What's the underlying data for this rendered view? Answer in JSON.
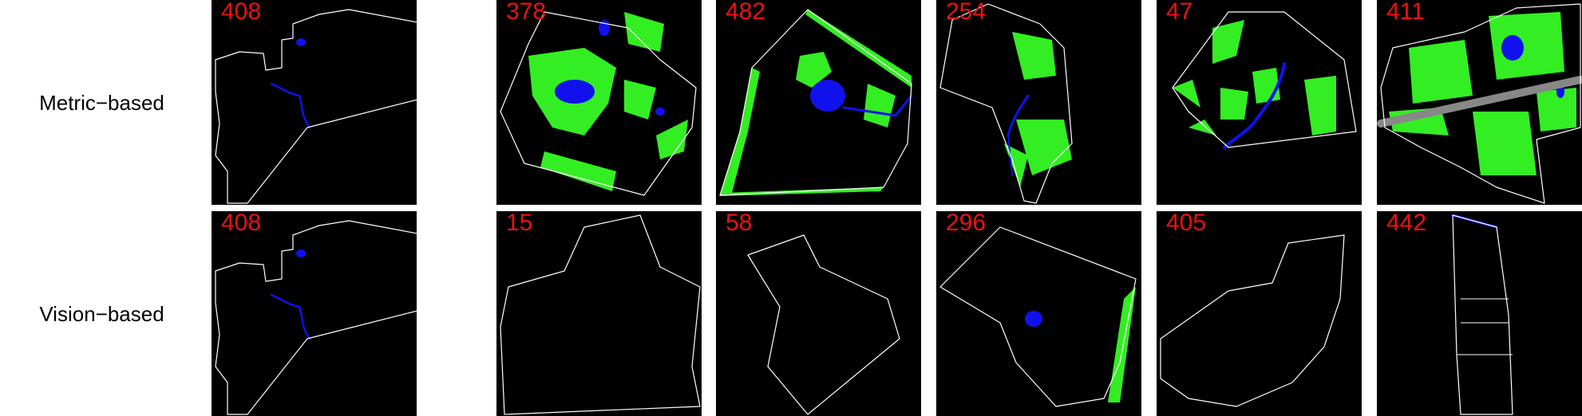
{
  "colors": {
    "background": "#000000",
    "boundary": "#ffffff",
    "green_space": "#33ee22",
    "water": "#1111ee",
    "id_label": "#ee1111"
  },
  "rows": [
    {
      "label": "Metric−based",
      "tiles": [
        {
          "id": "408",
          "query": true,
          "shape": "408",
          "has_green": false,
          "has_water": true
        },
        {
          "id": "378",
          "query": false,
          "shape": "378",
          "has_green": true,
          "has_water": true
        },
        {
          "id": "482",
          "query": false,
          "shape": "482",
          "has_green": true,
          "has_water": true
        },
        {
          "id": "254",
          "query": false,
          "shape": "254",
          "has_green": true,
          "has_water": true
        },
        {
          "id": "47",
          "query": false,
          "shape": "47",
          "has_green": true,
          "has_water": true
        },
        {
          "id": "411",
          "query": false,
          "shape": "411",
          "has_green": true,
          "has_water": true
        }
      ]
    },
    {
      "label": "Vision−based",
      "tiles": [
        {
          "id": "408",
          "query": true,
          "shape": "408",
          "has_green": false,
          "has_water": true
        },
        {
          "id": "15",
          "query": false,
          "shape": "15",
          "has_green": false,
          "has_water": false
        },
        {
          "id": "58",
          "query": false,
          "shape": "58",
          "has_green": false,
          "has_water": false
        },
        {
          "id": "296",
          "query": false,
          "shape": "296",
          "has_green": true,
          "has_water": true
        },
        {
          "id": "405",
          "query": false,
          "shape": "405",
          "has_green": false,
          "has_water": false
        },
        {
          "id": "442",
          "query": false,
          "shape": "442",
          "has_green": false,
          "has_water": true
        }
      ]
    }
  ]
}
